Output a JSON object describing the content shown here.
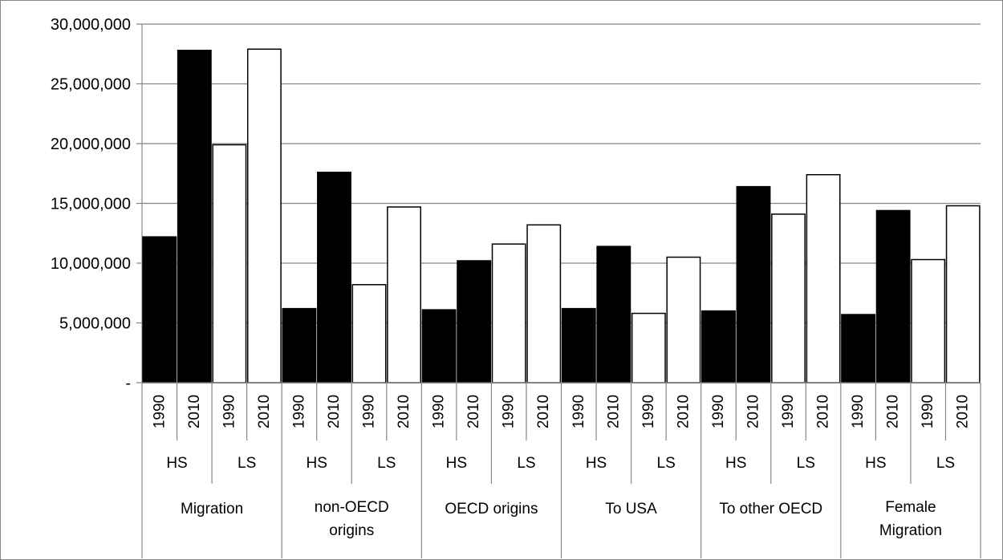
{
  "chart_data": {
    "type": "bar",
    "title": "",
    "xlabel": "",
    "ylabel": "",
    "ylim": [
      0,
      30000000
    ],
    "y_ticks": [
      0,
      5000000,
      10000000,
      15000000,
      20000000,
      25000000,
      30000000
    ],
    "y_tick_labels": [
      "-",
      "5,000,000",
      "10,000,000",
      "15,000,000",
      "20,000,000",
      "25,000,000",
      "30,000,000"
    ],
    "grid": true,
    "legend": "none",
    "colors": {
      "HS": "#000000",
      "LS": "#ffffff",
      "outline": "#000000",
      "grid": "#868686"
    },
    "groups": [
      {
        "label": "Migration",
        "label_lines": [
          "Migration"
        ],
        "skills": [
          {
            "label": "HS",
            "years": [
              "1990",
              "2010"
            ],
            "values": [
              12200000,
              27800000
            ]
          },
          {
            "label": "LS",
            "years": [
              "1990",
              "2010"
            ],
            "values": [
              19900000,
              27900000
            ]
          }
        ]
      },
      {
        "label": "non-OECD origins",
        "label_lines": [
          "non-OECD",
          "origins"
        ],
        "skills": [
          {
            "label": "HS",
            "years": [
              "1990",
              "2010"
            ],
            "values": [
              6200000,
              17600000
            ]
          },
          {
            "label": "LS",
            "years": [
              "1990",
              "2010"
            ],
            "values": [
              8200000,
              14700000
            ]
          }
        ]
      },
      {
        "label": "OECD origins",
        "label_lines": [
          "OECD origins"
        ],
        "skills": [
          {
            "label": "HS",
            "years": [
              "1990",
              "2010"
            ],
            "values": [
              6100000,
              10200000
            ]
          },
          {
            "label": "LS",
            "years": [
              "1990",
              "2010"
            ],
            "values": [
              11600000,
              13200000
            ]
          }
        ]
      },
      {
        "label": "To USA",
        "label_lines": [
          "To USA"
        ],
        "skills": [
          {
            "label": "HS",
            "years": [
              "1990",
              "2010"
            ],
            "values": [
              6200000,
              11400000
            ]
          },
          {
            "label": "LS",
            "years": [
              "1990",
              "2010"
            ],
            "values": [
              5800000,
              10500000
            ]
          }
        ]
      },
      {
        "label": "To other OECD",
        "label_lines": [
          "To other OECD"
        ],
        "skills": [
          {
            "label": "HS",
            "years": [
              "1990",
              "2010"
            ],
            "values": [
              6000000,
              16400000
            ]
          },
          {
            "label": "LS",
            "years": [
              "1990",
              "2010"
            ],
            "values": [
              14100000,
              17400000
            ]
          }
        ]
      },
      {
        "label": "Female Migration",
        "label_lines": [
          "Female",
          "Migration"
        ],
        "skills": [
          {
            "label": "HS",
            "years": [
              "1990",
              "2010"
            ],
            "values": [
              5700000,
              14400000
            ]
          },
          {
            "label": "LS",
            "years": [
              "1990",
              "2010"
            ],
            "values": [
              10300000,
              14800000
            ]
          }
        ]
      }
    ]
  }
}
